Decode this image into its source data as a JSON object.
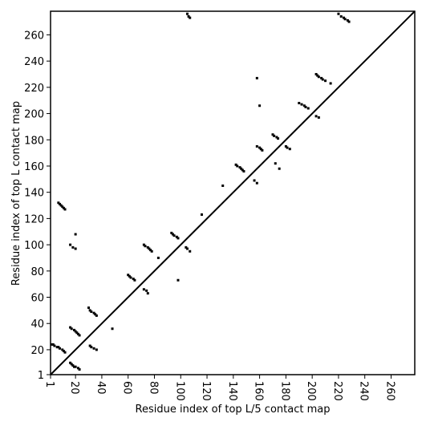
{
  "chart_data": {
    "type": "scatter",
    "xlabel": "Residue index of top L/5 contact map",
    "ylabel": "Residue index of top L contact map",
    "xlim": [
      1,
      278
    ],
    "ylim": [
      1,
      278
    ],
    "xticks": [
      1,
      20,
      40,
      60,
      80,
      100,
      120,
      140,
      160,
      180,
      200,
      220,
      240,
      260
    ],
    "yticks": [
      1,
      20,
      40,
      60,
      80,
      100,
      120,
      140,
      160,
      180,
      200,
      220,
      240,
      260
    ],
    "diagonal": true,
    "color": "#000000",
    "x": [
      2,
      3,
      4,
      6,
      7,
      8,
      10,
      11,
      12,
      16,
      17,
      18,
      19,
      20,
      22,
      23,
      16,
      17,
      19,
      20,
      21,
      22,
      23,
      30,
      31,
      32,
      34,
      35,
      36,
      31,
      32,
      34,
      36,
      48,
      60,
      61,
      62,
      64,
      65,
      72,
      74,
      75,
      72,
      73,
      75,
      76,
      77,
      78,
      83,
      93,
      94,
      95,
      97,
      98,
      98,
      104,
      105,
      107,
      116,
      132,
      142,
      143,
      145,
      146,
      147,
      148,
      156,
      158,
      158,
      160,
      161,
      162,
      158,
      160,
      170,
      171,
      173,
      174,
      172,
      175,
      180,
      181,
      183,
      190,
      192,
      194,
      195,
      197,
      203,
      204,
      205,
      207,
      208,
      210,
      203,
      205,
      214,
      220,
      222,
      224,
      225,
      227,
      228,
      105,
      106,
      107,
      7,
      8,
      9,
      10,
      11,
      12,
      16,
      18,
      20,
      20
    ],
    "values": [
      24,
      24,
      23,
      22,
      22,
      21,
      20,
      19,
      18,
      10,
      9,
      8,
      7,
      7,
      6,
      5,
      37,
      36,
      35,
      34,
      33,
      32,
      31,
      52,
      50,
      49,
      48,
      47,
      46,
      23,
      22,
      21,
      20,
      36,
      77,
      76,
      75,
      74,
      73,
      66,
      65,
      63,
      100,
      99,
      98,
      97,
      96,
      95,
      90,
      109,
      108,
      107,
      106,
      105,
      73,
      98,
      97,
      95,
      123,
      145,
      161,
      160,
      159,
      158,
      157,
      156,
      149,
      147,
      175,
      174,
      173,
      172,
      227,
      206,
      184,
      183,
      182,
      181,
      162,
      158,
      175,
      174,
      173,
      208,
      207,
      206,
      205,
      204,
      230,
      229,
      228,
      227,
      226,
      225,
      198,
      197,
      223,
      276,
      274,
      273,
      272,
      271,
      270,
      276,
      274,
      273,
      132,
      131,
      130,
      129,
      128,
      127,
      100,
      98,
      97,
      108
    ]
  }
}
